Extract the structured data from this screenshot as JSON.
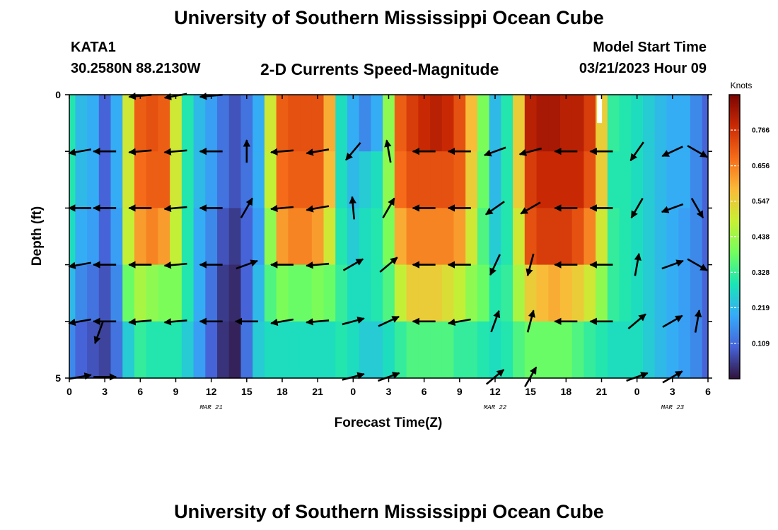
{
  "header": {
    "title": "University of Southern Mississippi Ocean Cube",
    "station_name": "KATA1",
    "station_coords": "30.2580N  88.2130W",
    "subtitle": "2-D Currents Speed-Magnitude",
    "model_start_label": "Model Start Time",
    "model_start_value": "03/21/2023 Hour 09"
  },
  "footer": {
    "title": "University of Southern Mississippi Ocean Cube"
  },
  "chart_data": {
    "type": "heatmap",
    "title": "2-D Currents Speed-Magnitude",
    "xlabel": "Forecast Time(Z)",
    "ylabel": "Depth (ft)",
    "x_tick_labels": [
      "0",
      "3",
      "6",
      "9",
      "12",
      "15",
      "18",
      "21",
      "0",
      "3",
      "6",
      "9",
      "12",
      "15",
      "18",
      "21",
      "0",
      "3",
      "6"
    ],
    "x_date_labels": [
      {
        "text": "MAR 21",
        "tick_index": 4
      },
      {
        "text": "MAR 22",
        "tick_index": 12
      },
      {
        "text": "MAR 23",
        "tick_index": 17
      }
    ],
    "y_tick_labels": [
      {
        "text": "0",
        "depth": 0
      },
      {
        "text": "5",
        "depth": 5
      }
    ],
    "y_range": [
      0,
      5
    ],
    "x_range_hours": [
      0,
      54
    ],
    "colorbar": {
      "title": "Knots",
      "tick_values": [
        "0.766",
        "0.656",
        "0.547",
        "0.438",
        "0.328",
        "0.219",
        "0.109"
      ],
      "range": [
        0,
        0.875
      ],
      "colors": [
        "#30123b",
        "#4662d7",
        "#36aaf9",
        "#1ae4b6",
        "#72fe5e",
        "#c8ef34",
        "#faba39",
        "#f66b19",
        "#ca2a04",
        "#7a0403"
      ]
    },
    "time_hours": [
      0,
      1,
      2,
      3,
      4,
      5,
      6,
      7,
      8,
      9,
      10,
      11,
      12,
      13,
      14,
      15,
      16,
      17,
      18,
      19,
      20,
      21,
      22,
      23,
      24,
      25,
      26,
      27,
      28,
      29,
      30,
      31,
      32,
      33,
      34,
      35,
      36,
      37,
      38,
      39,
      40,
      41,
      42,
      43,
      44,
      45,
      46,
      47,
      48,
      49,
      50,
      51,
      52,
      53,
      54
    ],
    "depth_layers_ft": [
      "0-1",
      "1-2",
      "2-3",
      "3-4",
      "4-5"
    ],
    "speed_knots": [
      [
        0.3,
        0.22,
        0.2,
        0.1,
        0.2,
        0.5,
        0.7,
        0.72,
        0.7,
        0.5,
        0.3,
        0.22,
        0.18,
        0.12,
        0.08,
        0.12,
        0.2,
        0.5,
        0.7,
        0.72,
        0.72,
        0.72,
        0.6,
        0.28,
        0.2,
        0.15,
        0.2,
        0.42,
        0.7,
        0.75,
        0.78,
        0.8,
        0.78,
        0.72,
        0.58,
        0.4,
        0.22,
        0.3,
        0.55,
        0.8,
        0.82,
        0.82,
        0.8,
        0.8,
        0.75,
        0.55,
        0.32,
        0.3,
        0.28,
        0.25,
        0.22,
        0.2,
        0.2,
        0.15,
        0.1
      ],
      [
        0.3,
        0.22,
        0.2,
        0.1,
        0.2,
        0.5,
        0.68,
        0.7,
        0.7,
        0.5,
        0.3,
        0.22,
        0.18,
        0.12,
        0.08,
        0.12,
        0.2,
        0.48,
        0.68,
        0.7,
        0.7,
        0.7,
        0.58,
        0.28,
        0.22,
        0.25,
        0.28,
        0.42,
        0.68,
        0.72,
        0.72,
        0.72,
        0.72,
        0.7,
        0.55,
        0.38,
        0.22,
        0.3,
        0.55,
        0.75,
        0.78,
        0.78,
        0.78,
        0.78,
        0.72,
        0.55,
        0.3,
        0.3,
        0.28,
        0.25,
        0.22,
        0.2,
        0.2,
        0.15,
        0.1
      ],
      [
        0.28,
        0.2,
        0.18,
        0.1,
        0.18,
        0.48,
        0.62,
        0.65,
        0.62,
        0.48,
        0.3,
        0.2,
        0.15,
        0.08,
        0.05,
        0.1,
        0.18,
        0.42,
        0.62,
        0.65,
        0.65,
        0.62,
        0.5,
        0.3,
        0.25,
        0.28,
        0.3,
        0.4,
        0.6,
        0.65,
        0.65,
        0.65,
        0.65,
        0.62,
        0.5,
        0.35,
        0.25,
        0.3,
        0.5,
        0.72,
        0.75,
        0.75,
        0.75,
        0.72,
        0.65,
        0.5,
        0.32,
        0.3,
        0.28,
        0.25,
        0.22,
        0.2,
        0.18,
        0.15,
        0.1
      ],
      [
        0.22,
        0.15,
        0.12,
        0.08,
        0.15,
        0.38,
        0.45,
        0.42,
        0.4,
        0.4,
        0.3,
        0.2,
        0.12,
        0.05,
        0.03,
        0.1,
        0.22,
        0.35,
        0.4,
        0.38,
        0.38,
        0.4,
        0.38,
        0.32,
        0.28,
        0.28,
        0.3,
        0.35,
        0.48,
        0.55,
        0.55,
        0.55,
        0.52,
        0.48,
        0.42,
        0.38,
        0.3,
        0.32,
        0.45,
        0.55,
        0.58,
        0.6,
        0.58,
        0.55,
        0.5,
        0.42,
        0.32,
        0.3,
        0.28,
        0.25,
        0.22,
        0.2,
        0.18,
        0.15,
        0.1
      ],
      [
        0.15,
        0.1,
        0.08,
        0.06,
        0.12,
        0.25,
        0.32,
        0.3,
        0.3,
        0.3,
        0.25,
        0.18,
        0.1,
        0.04,
        0.02,
        0.12,
        0.25,
        0.28,
        0.28,
        0.28,
        0.28,
        0.28,
        0.28,
        0.3,
        0.28,
        0.25,
        0.25,
        0.28,
        0.32,
        0.35,
        0.35,
        0.35,
        0.35,
        0.32,
        0.32,
        0.3,
        0.28,
        0.3,
        0.35,
        0.38,
        0.38,
        0.38,
        0.38,
        0.35,
        0.32,
        0.3,
        0.28,
        0.28,
        0.28,
        0.25,
        0.22,
        0.2,
        0.18,
        0.15,
        0.1
      ]
    ],
    "arrow_rows_depth_ft": [
      0,
      1,
      2,
      3,
      4,
      5
    ],
    "arrow_times_hours": [
      0,
      3,
      6,
      9,
      12,
      15,
      18,
      21,
      24,
      27,
      30,
      33,
      36,
      39,
      42,
      45,
      48,
      51,
      54
    ],
    "arrow_directions_deg": [
      [
        null,
        null,
        185,
        190,
        185,
        null,
        null,
        null,
        null,
        null,
        null,
        null,
        null,
        null,
        null,
        null,
        null,
        null,
        null
      ],
      [
        190,
        180,
        185,
        185,
        180,
        90,
        185,
        190,
        230,
        100,
        180,
        180,
        200,
        195,
        180,
        180,
        235,
        205,
        330
      ],
      [
        180,
        180,
        180,
        185,
        180,
        60,
        185,
        190,
        95,
        60,
        180,
        180,
        215,
        210,
        180,
        180,
        240,
        200,
        300
      ],
      [
        190,
        180,
        180,
        185,
        180,
        20,
        180,
        185,
        30,
        40,
        180,
        180,
        245,
        255,
        180,
        180,
        80,
        20,
        330
      ],
      [
        190,
        180,
        185,
        185,
        180,
        180,
        190,
        185,
        15,
        25,
        180,
        190,
        70,
        75,
        180,
        180,
        40,
        30,
        80
      ],
      [
        10,
        0,
        null,
        null,
        null,
        null,
        null,
        null,
        15,
        20,
        null,
        null,
        40,
        60,
        null,
        null,
        20,
        30,
        null
      ]
    ],
    "arrow_extra": [
      {
        "time_hours": 2.5,
        "depth_ft": 4.2,
        "direction_deg": 250
      }
    ],
    "missing_data": [
      {
        "time_hours": 44.8,
        "depth_from_ft": 0,
        "depth_to_ft": 0.5,
        "color": "#ffffff"
      }
    ]
  }
}
